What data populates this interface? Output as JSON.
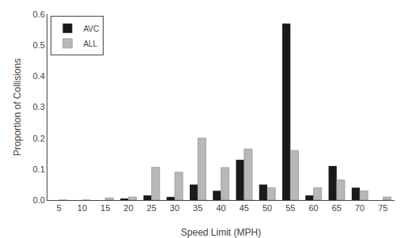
{
  "chart_data": {
    "type": "bar",
    "xlabel": "Speed Limit (MPH)",
    "ylabel": "Proportion of Collisions",
    "categories": [
      5,
      10,
      15,
      20,
      25,
      30,
      35,
      40,
      45,
      50,
      55,
      60,
      65,
      70,
      75
    ],
    "series": [
      {
        "name": "AVC",
        "color": "#1a1a1a",
        "values": [
          0.0,
          0.0,
          0.0,
          0.005,
          0.015,
          0.01,
          0.05,
          0.03,
          0.13,
          0.05,
          0.57,
          0.015,
          0.11,
          0.04,
          0.0
        ]
      },
      {
        "name": "ALL",
        "color": "#b8b8b8",
        "values": [
          0.0,
          0.0,
          0.007,
          0.01,
          0.106,
          0.09,
          0.2,
          0.105,
          0.165,
          0.04,
          0.16,
          0.04,
          0.065,
          0.03,
          0.01
        ]
      }
    ],
    "ylim": [
      0,
      0.6
    ],
    "yticks": [
      {
        "value": 0,
        "label": "0.0"
      },
      0.1,
      0.2,
      0.3,
      0.4,
      0.5,
      0.6
    ],
    "grid": false,
    "legend": "upper left"
  }
}
